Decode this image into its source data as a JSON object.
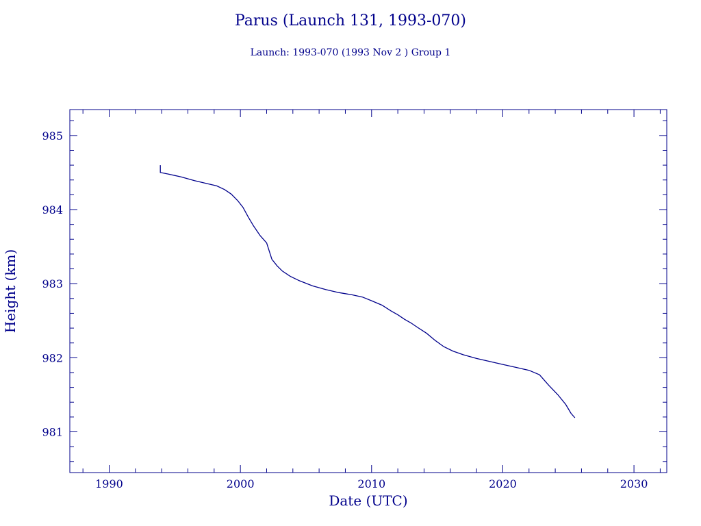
{
  "chart_data": {
    "type": "line",
    "title": "Parus (Launch 131, 1993-070)",
    "subtitle": "Launch: 1993-070  (1993 Nov  2 )  Group 1",
    "xlabel": "Date (UTC)",
    "ylabel": "Height (km)",
    "xlim": [
      1987,
      2032.5
    ],
    "ylim": [
      980.45,
      985.35
    ],
    "xticks": [
      1990,
      2000,
      2010,
      2020,
      2030
    ],
    "yticks": [
      981,
      982,
      983,
      984,
      985
    ],
    "x_minor_step": 2,
    "y_minor_step": 0.2,
    "grid": false,
    "line_color": "#00008b",
    "axis_color": "#00008b",
    "series": [
      {
        "x": [
          1993.9,
          1993.9,
          1994.5,
          1995.5,
          1996.5,
          1997.5,
          1998.2,
          1998.8,
          1999.3,
          1999.8,
          2000.2,
          2000.6,
          2001.0,
          2001.5,
          2002.0,
          2002.4,
          2002.8,
          2003.2,
          2003.8,
          2004.5,
          2005.5,
          2006.5,
          2007.5,
          2008.5,
          2009.3,
          2010.0,
          2010.8,
          2011.5,
          2012.0,
          2012.5,
          2013.0,
          2013.5,
          2014.2,
          2014.8,
          2015.5,
          2016.2,
          2017.0,
          2018.0,
          2019.0,
          2020.0,
          2021.0,
          2022.0,
          2022.8,
          2023.5,
          2024.2,
          2024.8,
          2025.2,
          2025.5
        ],
        "y": [
          984.6,
          984.5,
          984.48,
          984.44,
          984.39,
          984.35,
          984.32,
          984.27,
          984.21,
          984.12,
          984.03,
          983.9,
          983.78,
          983.65,
          983.55,
          983.33,
          983.24,
          983.17,
          983.1,
          983.04,
          982.97,
          982.92,
          982.88,
          982.85,
          982.82,
          982.77,
          982.71,
          982.63,
          982.58,
          982.52,
          982.47,
          982.41,
          982.33,
          982.24,
          982.15,
          982.09,
          982.04,
          981.99,
          981.95,
          981.91,
          981.87,
          981.83,
          981.77,
          981.63,
          981.5,
          981.37,
          981.25,
          981.19
        ]
      }
    ]
  }
}
